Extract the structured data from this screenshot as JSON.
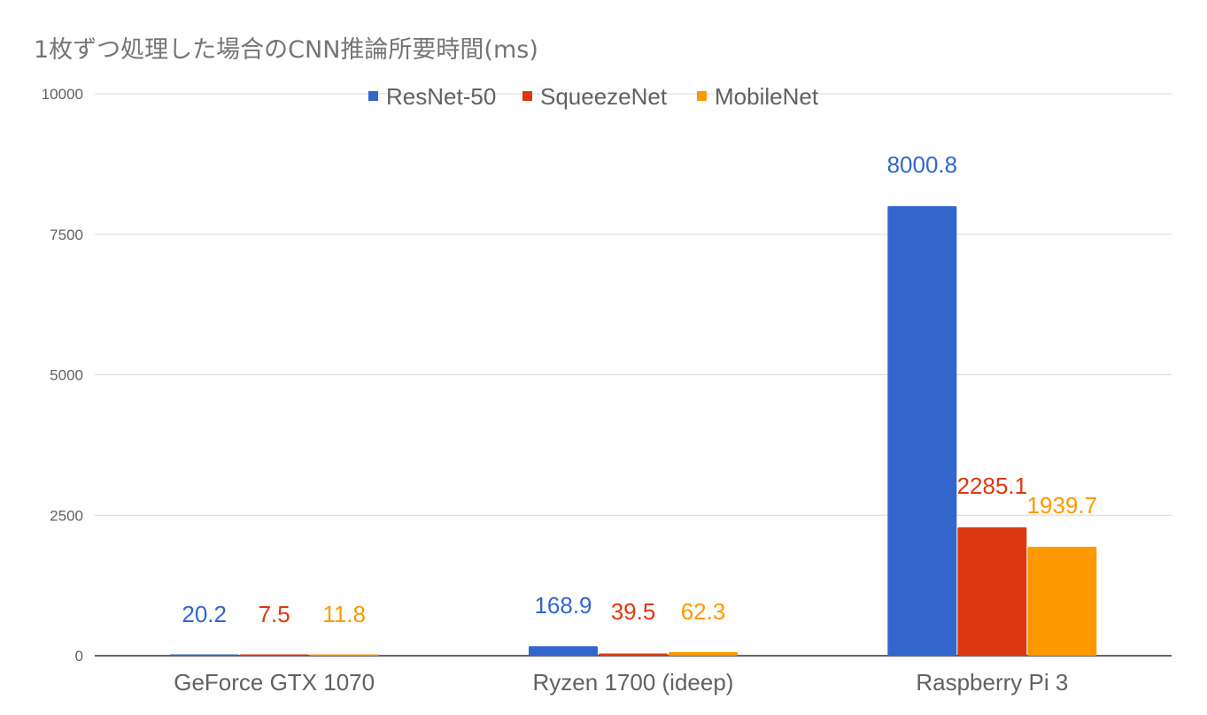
{
  "chart_data": {
    "type": "bar",
    "title": "1枚ずつ処理した場合のCNN推論所要時間(ms)",
    "xlabel": "",
    "ylabel": "",
    "categories": [
      "GeForce GTX 1070",
      "Ryzen 1700 (ideep)",
      "Raspberry Pi 3"
    ],
    "series": [
      {
        "name": "ResNet-50",
        "color": "#3366cc",
        "values": [
          20.2,
          168.9,
          8000.8
        ],
        "labels": [
          "20.2",
          "168.9",
          "8000.8"
        ]
      },
      {
        "name": "SqueezeNet",
        "color": "#dc3912",
        "values": [
          7.5,
          39.5,
          2285.1
        ],
        "labels": [
          "7.5",
          "39.5",
          "2285.1"
        ]
      },
      {
        "name": "MobileNet",
        "color": "#ff9900",
        "values": [
          11.8,
          62.3,
          1939.7
        ],
        "labels": [
          "11.8",
          "62.3",
          "1939.7"
        ]
      }
    ],
    "ylim": [
      0,
      10000
    ],
    "yticks": [
      0,
      2500,
      5000,
      7500,
      10000
    ],
    "ytick_labels": [
      "0",
      "2500",
      "5000",
      "7500",
      "10000"
    ],
    "grid": true,
    "legend_position": "top-center"
  }
}
